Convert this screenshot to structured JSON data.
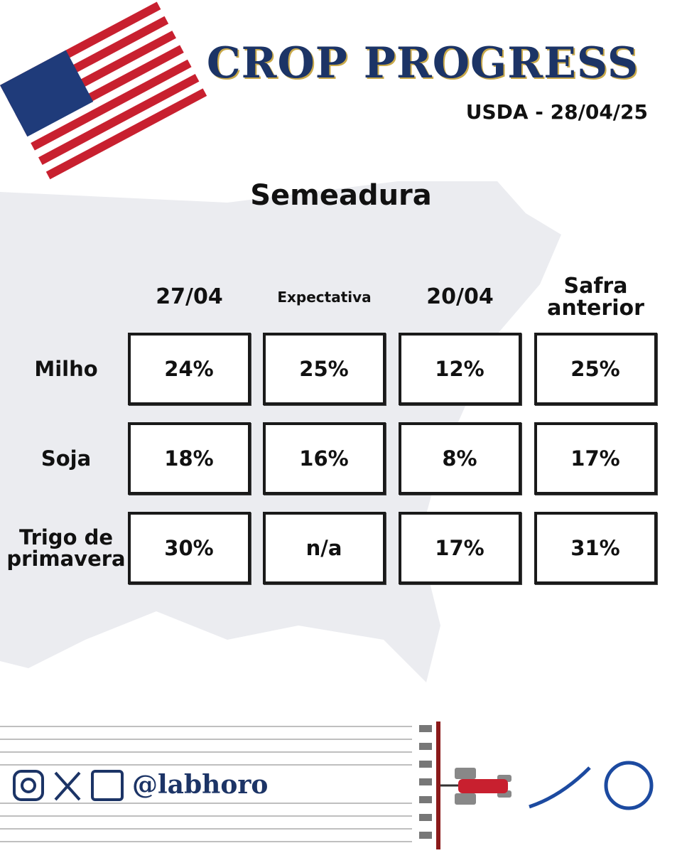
{
  "header": {
    "title": "CROP PROGRESS",
    "subtitle": "USDA - 28/04/25"
  },
  "section_title": "Semeadura",
  "table": {
    "columns": [
      "27/04",
      "Expectativa",
      "20/04",
      "Safra anterior"
    ],
    "rows": [
      {
        "label": "Milho",
        "cells": [
          "24%",
          "25%",
          "12%",
          "25%"
        ]
      },
      {
        "label": "Soja",
        "cells": [
          "18%",
          "16%",
          "8%",
          "17%"
        ]
      },
      {
        "label": "Trigo de primavera",
        "cells": [
          "30%",
          "n/a",
          "17%",
          "31%"
        ]
      }
    ]
  },
  "footer": {
    "handle": "@labhoro"
  }
}
